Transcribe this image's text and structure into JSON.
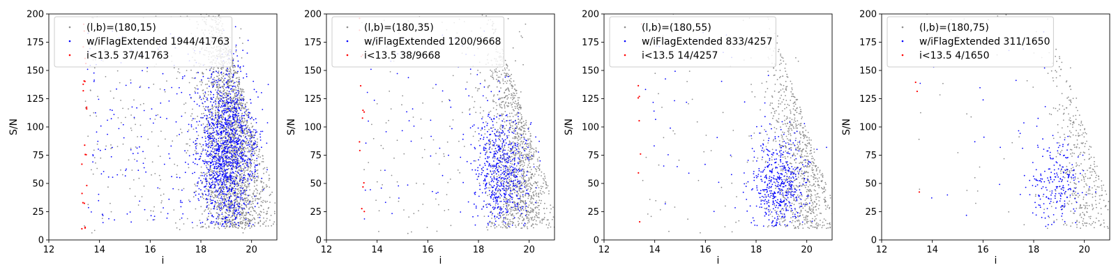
{
  "colors": {
    "all": "#8c8c8c",
    "extended": "#0000ff",
    "bright": "#ff0000",
    "legend_edge": "#cccccc"
  },
  "chart_data": [
    {
      "type": "scatter",
      "xlabel": "i",
      "ylabel": "S/N",
      "xlim": [
        12,
        21
      ],
      "ylim": [
        0,
        200
      ],
      "xticks": [
        12,
        14,
        16,
        18,
        20
      ],
      "yticks": [
        0,
        25,
        50,
        75,
        100,
        125,
        150,
        175,
        200
      ],
      "grid": false,
      "legend_position": "top-left",
      "series": [
        {
          "name": "(l,b)=(180,15)",
          "role": "all",
          "count": 41763
        },
        {
          "name": "w/iFlagExtended 1944/41763",
          "role": "extended",
          "count": 1944
        },
        {
          "name": "i<13.5 37/41763",
          "role": "bright",
          "count": 37
        }
      ]
    },
    {
      "type": "scatter",
      "xlabel": "i",
      "ylabel": "S/N",
      "xlim": [
        12,
        21
      ],
      "ylim": [
        0,
        200
      ],
      "xticks": [
        12,
        14,
        16,
        18,
        20
      ],
      "yticks": [
        0,
        25,
        50,
        75,
        100,
        125,
        150,
        175,
        200
      ],
      "grid": false,
      "legend_position": "top-left",
      "series": [
        {
          "name": "(l,b)=(180,35)",
          "role": "all",
          "count": 9668
        },
        {
          "name": "w/iFlagExtended 1200/9668",
          "role": "extended",
          "count": 1200
        },
        {
          "name": "i<13.5 38/9668",
          "role": "bright",
          "count": 38
        }
      ]
    },
    {
      "type": "scatter",
      "xlabel": "i",
      "ylabel": "S/N",
      "xlim": [
        12,
        21
      ],
      "ylim": [
        0,
        200
      ],
      "xticks": [
        12,
        14,
        16,
        18,
        20
      ],
      "yticks": [
        0,
        25,
        50,
        75,
        100,
        125,
        150,
        175,
        200
      ],
      "grid": false,
      "legend_position": "top-left",
      "series": [
        {
          "name": "(l,b)=(180,55)",
          "role": "all",
          "count": 4257
        },
        {
          "name": "w/iFlagExtended 833/4257",
          "role": "extended",
          "count": 833
        },
        {
          "name": "i<13.5 14/4257",
          "role": "bright",
          "count": 14
        }
      ]
    },
    {
      "type": "scatter",
      "xlabel": "i",
      "ylabel": "S/N",
      "xlim": [
        12,
        21
      ],
      "ylim": [
        0,
        200
      ],
      "xticks": [
        12,
        14,
        16,
        18,
        20
      ],
      "yticks": [
        0,
        25,
        50,
        75,
        100,
        125,
        150,
        175,
        200
      ],
      "grid": false,
      "legend_position": "top-left",
      "series": [
        {
          "name": "(l,b)=(180,75)",
          "role": "all",
          "count": 1650
        },
        {
          "name": "w/iFlagExtended 311/1650",
          "role": "extended",
          "count": 311
        },
        {
          "name": "i<13.5 4/1650",
          "role": "bright",
          "count": 4
        }
      ]
    }
  ]
}
